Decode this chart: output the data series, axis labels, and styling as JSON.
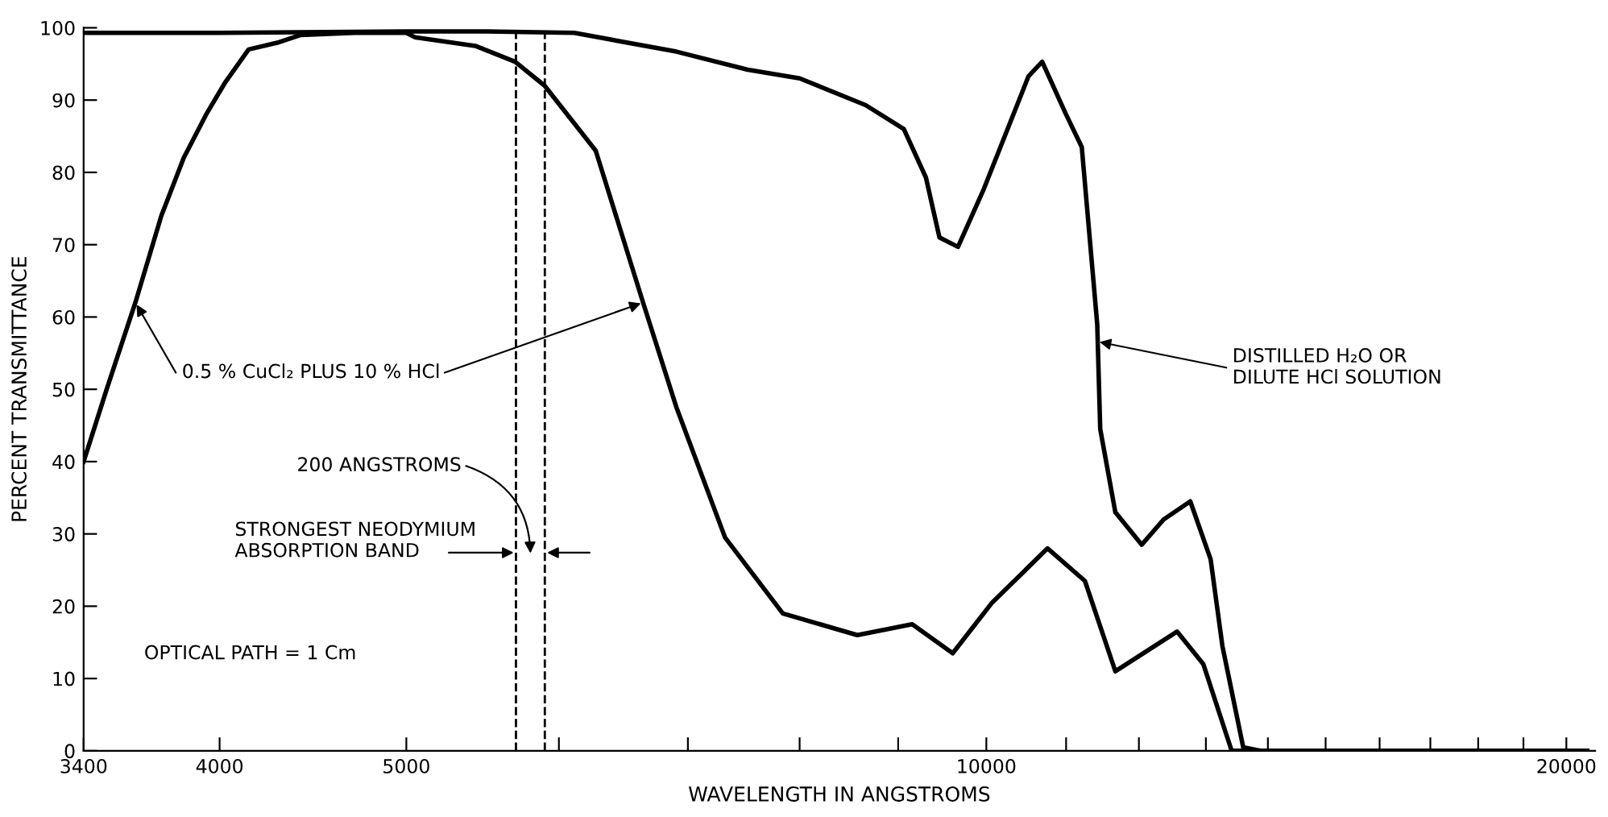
{
  "chart_data": {
    "type": "line",
    "xlabel": "WAVELENGTH IN ANGSTROMS",
    "ylabel": "PERCENT TRANSMITTANCE",
    "series": [
      {
        "color": "#000000",
        "x": [
          3400,
          3495,
          3617,
          3731,
          3832,
          3936,
          4028,
          4141,
          4294,
          4407,
          4700,
          5000,
          5051,
          5429,
          5694,
          5898,
          6270,
          6635,
          6905,
          7318,
          7841,
          8571,
          9152,
          9606,
          10069,
          10759,
          11250,
          11667,
          12560,
          12960,
          13407,
          13778,
          20500
        ],
        "values": [
          40,
          50,
          62,
          74,
          82,
          88,
          92.5,
          97,
          98,
          99,
          99.3,
          99.3,
          98.7,
          97.5,
          95.3,
          92,
          83,
          62,
          47.5,
          29.5,
          19,
          16,
          17.5,
          13.5,
          20.5,
          28,
          23.5,
          11,
          16.5,
          12,
          0,
          0,
          0
        ]
      },
      {
        "color": "#000000",
        "x": [
          3400,
          4000,
          5000,
          5500,
          6111,
          6905,
          7519,
          8000,
          8657,
          9061,
          9303,
          9455,
          9667,
          9970,
          10517,
          10690,
          11000,
          11208,
          11417,
          11458,
          11667,
          12040,
          12360,
          12760,
          13074,
          13259,
          13593,
          13889,
          20500
        ],
        "values": [
          99.3,
          99.3,
          99.5,
          99.5,
          99.3,
          96.7,
          94.2,
          93,
          89.3,
          86,
          79.3,
          71,
          69.7,
          77.7,
          93.3,
          95.3,
          88,
          83.5,
          59,
          44.5,
          33,
          28.5,
          32,
          34.5,
          26.5,
          14.5,
          0.5,
          0,
          0
        ]
      }
    ],
    "log": "x",
    "xlim": [
      3400,
      20700
    ],
    "xticks": [
      3400,
      4000,
      5000,
      {
        "value": 6000,
        "label": null
      },
      {
        "value": 7000,
        "label": null
      },
      {
        "value": 8000,
        "label": null
      },
      {
        "value": 9000,
        "label": null
      },
      10000,
      {
        "value": 11000,
        "label": null
      },
      {
        "value": 12000,
        "label": null
      },
      {
        "value": 13000,
        "label": null
      },
      {
        "value": 14000,
        "label": null
      },
      {
        "value": 15000,
        "label": null
      },
      {
        "value": 16000,
        "label": null
      },
      {
        "value": 17000,
        "label": null
      },
      {
        "value": 18000,
        "label": null
      },
      {
        "value": 19000,
        "label": null
      },
      20000
    ],
    "ylim": [
      0,
      100
    ],
    "yticks": [
      0,
      10,
      20,
      30,
      40,
      50,
      60,
      70,
      80,
      90,
      100
    ],
    "ref_lines": [
      {
        "axis": "x",
        "value": 5700,
        "label": "STRONGEST NEODYMIUM\nABSORPTION BAND",
        "line_style": "dashed",
        "color": "#000000"
      },
      {
        "axis": "x",
        "value": 5900,
        "line_style": "dashed",
        "color": "#000000"
      }
    ],
    "annotations": [
      {
        "text": "0.5 % CuCl₂ PLUS 10 % HCl",
        "x": 3617,
        "y": 62
      },
      {
        "text": "DISTILLED H₂O OR\nDILUTE HCl SOLUTION",
        "x": 11417,
        "y": 56.6
      },
      "200 ANGSTROMS",
      "OPTICAL PATH = 1 Cm"
    ],
    "grid": false,
    "legend": false,
    "marker": "none",
    "line_style": "solid"
  }
}
